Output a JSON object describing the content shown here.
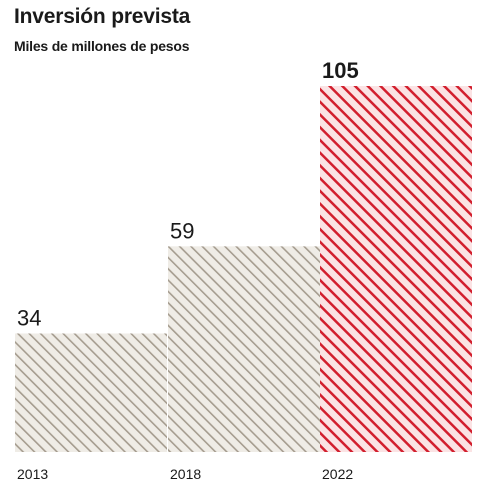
{
  "chart_data": {
    "type": "bar",
    "title": "Inversión prevista",
    "subtitle": "Miles de millones de pesos",
    "categories": [
      "2013",
      "2018",
      "2022"
    ],
    "values": [
      34,
      59,
      105
    ],
    "value_labels": [
      "34",
      "59",
      "105"
    ],
    "ylim": [
      0,
      105
    ],
    "grid": false,
    "colors": {
      "neutral_hatch": "#a59c8f",
      "highlight_hatch": "#d21f2e",
      "text": "#1a1a1a"
    }
  }
}
